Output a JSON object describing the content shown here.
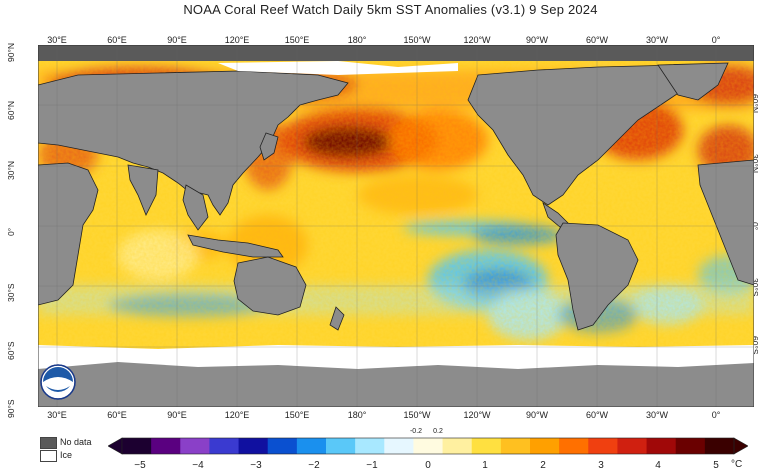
{
  "title": "NOAA Coral Reef Watch Daily 5km SST Anomalies  (v3.1)   9 Sep 2024",
  "lon_labels": [
    "30°E",
    "60°E",
    "90°E",
    "120°E",
    "150°E",
    "180°",
    "150°W",
    "120°W",
    "90°W",
    "60°W",
    "30°W",
    "0°"
  ],
  "lat_labels_left": [
    "90°N",
    "60°N",
    "30°N",
    "0°",
    "30°S",
    "60°S",
    "90°S"
  ],
  "lat_labels_right": [
    "60°N",
    "30°N",
    "0°",
    "30°S",
    "60°S"
  ],
  "legend": {
    "no_data": "No data",
    "ice": "Ice"
  },
  "legend_colors": {
    "no_data": "#5a5a5a",
    "ice": "#ffffff",
    "land": "#8c8c8c"
  },
  "colorbar": {
    "ticks": [
      "−5",
      "−4",
      "−3",
      "−2",
      "−1",
      "0",
      "1",
      "2",
      "3",
      "4",
      "5"
    ],
    "small_ticks": [
      "-0.2",
      "0.2"
    ],
    "unit": "°C",
    "colors": [
      "#1c0030",
      "#5a0080",
      "#8a40c8",
      "#3a3ad0",
      "#1010a0",
      "#0a50d0",
      "#1a90ee",
      "#5ac8f8",
      "#a8e8ff",
      "#e6f7ff",
      "#fffbe0",
      "#fff0a0",
      "#ffe040",
      "#ffc020",
      "#ffa000",
      "#ff7000",
      "#f04010",
      "#d02010",
      "#a00808",
      "#6a0000",
      "#3a0000"
    ]
  },
  "icons": {
    "logo": "noaa-logo-icon"
  }
}
